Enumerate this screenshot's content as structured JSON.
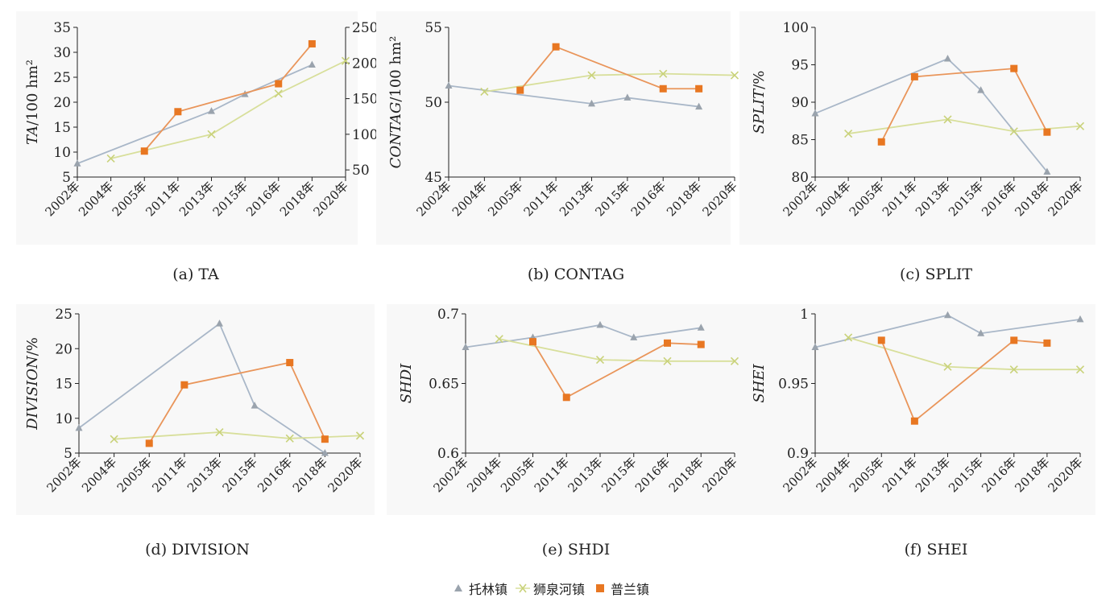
{
  "captions": [
    "(a) TA",
    "(b) CONTAG",
    "(c) SPLIT",
    "(d) DIVISION",
    "(e) SHDI",
    "(f) SHEI"
  ],
  "legend": [
    {
      "name": "托林镇",
      "color": "#9aa3ad",
      "marker": "triangle"
    },
    {
      "name": "狮泉河镇",
      "color": "#d3dc8c",
      "marker": "x"
    },
    {
      "name": "普兰镇",
      "color": "#e87722",
      "marker": "square"
    }
  ],
  "line_colors": {
    "托林镇": "#a9b7c8",
    "狮泉河镇": "#d8df9b",
    "普兰镇": "#e9955a"
  },
  "chart_data": [
    {
      "type": "line",
      "categories": [
        "2002年",
        "2004年",
        "2005年",
        "2011年",
        "2013年",
        "2015年",
        "2016年",
        "2018年",
        "2020年"
      ],
      "ylabel_italic": "TA",
      "ylabel_rest": "/100 hm²",
      "ylim": [
        5,
        35
      ],
      "yticks": [
        5,
        10,
        15,
        20,
        25,
        30,
        35
      ],
      "y2lim": [
        40,
        250
      ],
      "y2ticks": [
        50,
        100,
        150,
        200,
        250
      ],
      "series": [
        {
          "name": "托林镇",
          "values": [
            7.7,
            null,
            null,
            null,
            18.2,
            21.6,
            null,
            27.5,
            null
          ]
        },
        {
          "name": "狮泉河镇",
          "axis": "right",
          "values": [
            null,
            66,
            null,
            null,
            100,
            null,
            157,
            null,
            203
          ]
        },
        {
          "name": "普兰镇",
          "values": [
            null,
            null,
            10.2,
            18.1,
            null,
            null,
            23.7,
            31.7,
            null
          ]
        }
      ]
    },
    {
      "type": "line",
      "categories": [
        "2002年",
        "2004年",
        "2005年",
        "2011年",
        "2013年",
        "2015年",
        "2016年",
        "2018年",
        "2020年"
      ],
      "ylabel_italic": "CONTAG",
      "ylabel_rest": "/100 hm²",
      "ylim": [
        45,
        55
      ],
      "yticks": [
        45,
        50,
        55
      ],
      "series": [
        {
          "name": "托林镇",
          "values": [
            51.1,
            null,
            null,
            null,
            49.9,
            50.3,
            null,
            49.7,
            null
          ]
        },
        {
          "name": "狮泉河镇",
          "values": [
            null,
            50.7,
            null,
            null,
            51.8,
            null,
            51.9,
            null,
            51.8
          ]
        },
        {
          "name": "普兰镇",
          "values": [
            null,
            null,
            50.8,
            53.7,
            null,
            null,
            50.9,
            50.9,
            null
          ]
        }
      ]
    },
    {
      "type": "line",
      "categories": [
        "2002年",
        "2004年",
        "2005年",
        "2011年",
        "2013年",
        "2015年",
        "2016年",
        "2018年",
        "2020年"
      ],
      "ylabel_italic": "SPLIT",
      "ylabel_rest": "/%",
      "ylim": [
        80,
        100
      ],
      "yticks": [
        80,
        85,
        90,
        95,
        100
      ],
      "series": [
        {
          "name": "托林镇",
          "values": [
            88.5,
            null,
            null,
            null,
            95.8,
            91.6,
            null,
            80.7,
            null
          ]
        },
        {
          "name": "狮泉河镇",
          "values": [
            null,
            85.8,
            null,
            null,
            87.7,
            null,
            86.1,
            null,
            86.8
          ]
        },
        {
          "name": "普兰镇",
          "values": [
            null,
            null,
            84.7,
            93.4,
            null,
            null,
            94.5,
            86.0,
            null
          ]
        }
      ]
    },
    {
      "type": "line",
      "categories": [
        "2002年",
        "2004年",
        "2005年",
        "2011年",
        "2013年",
        "2015年",
        "2016年",
        "2018年",
        "2020年"
      ],
      "ylabel_italic": "DIVISION",
      "ylabel_rest": "/%",
      "ylim": [
        5,
        25
      ],
      "yticks": [
        5,
        10,
        15,
        20,
        25
      ],
      "series": [
        {
          "name": "托林镇",
          "values": [
            8.6,
            null,
            null,
            null,
            23.6,
            11.8,
            null,
            5.0,
            null
          ]
        },
        {
          "name": "狮泉河镇",
          "values": [
            null,
            7.0,
            null,
            null,
            8.0,
            null,
            7.1,
            null,
            7.5
          ]
        },
        {
          "name": "普兰镇",
          "values": [
            null,
            null,
            6.4,
            14.8,
            null,
            null,
            18.0,
            7.0,
            null
          ]
        }
      ]
    },
    {
      "type": "line",
      "categories": [
        "2002年",
        "2004年",
        "2005年",
        "2011年",
        "2013年",
        "2015年",
        "2016年",
        "2018年",
        "2020年"
      ],
      "ylabel_italic": "SHDI",
      "ylabel_rest": "",
      "ylim": [
        0.6,
        0.7
      ],
      "yticks": [
        0.6,
        0.65,
        0.7
      ],
      "series": [
        {
          "name": "托林镇",
          "values": [
            0.676,
            null,
            0.683,
            null,
            0.692,
            0.683,
            null,
            0.69,
            null
          ]
        },
        {
          "name": "狮泉河镇",
          "values": [
            null,
            0.682,
            null,
            null,
            0.667,
            null,
            0.666,
            null,
            0.666
          ]
        },
        {
          "name": "普兰镇",
          "values": [
            null,
            null,
            0.68,
            0.64,
            null,
            null,
            0.679,
            0.678,
            null
          ]
        }
      ]
    },
    {
      "type": "line",
      "categories": [
        "2002年",
        "2004年",
        "2005年",
        "2011年",
        "2013年",
        "2015年",
        "2016年",
        "2018年",
        "2020年"
      ],
      "ylabel_italic": "SHEI",
      "ylabel_rest": "",
      "ylim": [
        0.9,
        1.0
      ],
      "yticks": [
        0.9,
        0.95,
        1
      ],
      "series": [
        {
          "name": "托林镇",
          "values": [
            0.976,
            null,
            null,
            null,
            0.999,
            0.986,
            null,
            null,
            0.996
          ]
        },
        {
          "name": "狮泉河镇",
          "values": [
            null,
            0.983,
            null,
            null,
            0.962,
            null,
            0.96,
            null,
            0.96
          ]
        },
        {
          "name": "普兰镇",
          "values": [
            null,
            null,
            0.981,
            0.923,
            null,
            null,
            0.981,
            0.979,
            null
          ]
        }
      ]
    }
  ]
}
